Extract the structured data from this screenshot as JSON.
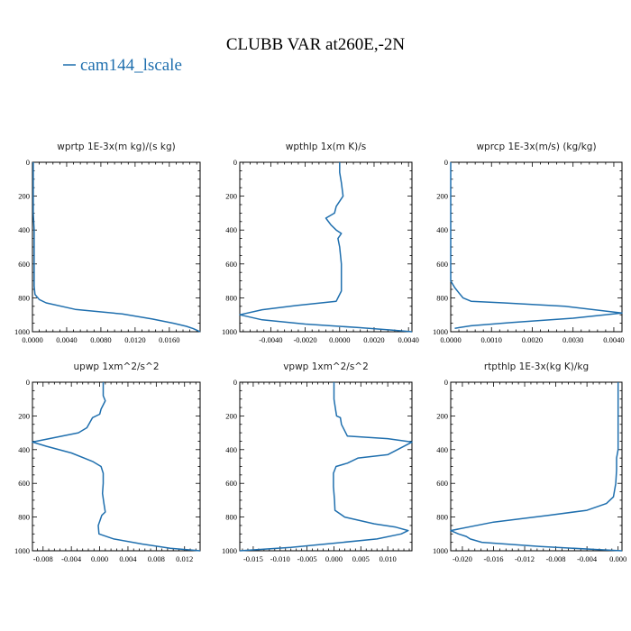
{
  "figure": {
    "title": "CLUBB VAR at260E,-2N",
    "legend": {
      "label": "cam144_lscale",
      "color": "#1f6fae"
    }
  },
  "chart_data": [
    {
      "type": "line",
      "title": "wprtp  1E-3x(m kg)/(s kg)",
      "xlim": [
        0,
        0.0196
      ],
      "xticks": [
        0,
        0.004,
        0.008,
        0.012,
        0.016
      ],
      "xtick_labels": [
        "0.0000",
        "0.0040",
        "0.0080",
        "0.0120",
        "0.0160"
      ],
      "ylim": [
        0,
        1000
      ],
      "yticks": [
        0,
        200,
        400,
        600,
        800,
        1000
      ],
      "ytick_labels": [
        "0",
        "200",
        "400",
        "600",
        "800",
        "1000"
      ],
      "ylabel_orientation": "inverted pressure axis",
      "series": [
        {
          "name": "cam144_lscale",
          "x": [
            0.0001,
            0.0001,
            0.0001,
            0.0001,
            0.0002,
            0.0002,
            0.0002,
            0.0002,
            0.0002,
            0.0003,
            0.0008,
            0.0016,
            0.005,
            0.0105,
            0.014,
            0.0165,
            0.018,
            0.0188,
            0.0196
          ],
          "y": [
            0,
            100,
            200,
            300,
            400,
            500,
            600,
            700,
            730,
            780,
            810,
            830,
            868,
            895,
            925,
            950,
            968,
            982,
            1000
          ]
        }
      ]
    },
    {
      "type": "line",
      "title": "wpthlp  1x(m K)/s",
      "xlim": [
        -0.0058,
        0.0042
      ],
      "xticks": [
        -0.004,
        -0.002,
        0,
        0.002,
        0.004
      ],
      "xtick_labels": [
        "-0.0040",
        "-0.0020",
        "0.0000",
        "0.0020",
        "0.0040"
      ],
      "ylim": [
        0,
        1000
      ],
      "yticks": [
        0,
        200,
        400,
        600,
        800,
        1000
      ],
      "ytick_labels": [
        "0",
        "200",
        "400",
        "600",
        "800",
        "1000"
      ],
      "series": [
        {
          "name": "cam144_lscale",
          "x": [
            0.0,
            0.0,
            0.0001,
            0.0002,
            -0.0002,
            -0.0003,
            -0.0008,
            -0.0005,
            -0.0002,
            0.0001,
            -0.0001,
            0.0,
            0.0001,
            0.0001,
            0.0001,
            -0.0002,
            -0.0025,
            -0.0045,
            -0.0058,
            -0.0045,
            -0.002,
            0.001,
            0.003,
            0.0042
          ],
          "y": [
            0,
            60,
            120,
            200,
            260,
            300,
            330,
            370,
            400,
            420,
            450,
            500,
            600,
            700,
            760,
            820,
            845,
            870,
            900,
            930,
            955,
            975,
            990,
            1000
          ]
        }
      ]
    },
    {
      "type": "line",
      "title": "wprcp  1E-3x(m/s) (kg/kg)",
      "xlim": [
        0,
        0.0042
      ],
      "xticks": [
        0,
        0.001,
        0.002,
        0.003,
        0.004
      ],
      "xtick_labels": [
        "0.0000",
        "0.0010",
        "0.0020",
        "0.0030",
        "0.0040"
      ],
      "ylim": [
        0,
        1000
      ],
      "yticks": [
        0,
        200,
        400,
        600,
        800,
        1000
      ],
      "ytick_labels": [
        "0",
        "200",
        "400",
        "600",
        "800",
        "1000"
      ],
      "series": [
        {
          "name": "cam144_lscale",
          "x": [
            0,
            0,
            0,
            0,
            0.0001,
            0.0002,
            0.0003,
            0.0005,
            0.0013,
            0.0028,
            0.0042,
            0.003,
            0.0015,
            0.0005,
            0.0001
          ],
          "y": [
            0,
            200,
            400,
            700,
            740,
            770,
            800,
            820,
            830,
            850,
            890,
            920,
            945,
            965,
            980
          ]
        }
      ]
    },
    {
      "type": "line",
      "title": "upwp  1xm^2/s^2",
      "xlim": [
        -0.0095,
        0.0142
      ],
      "xticks": [
        -0.008,
        -0.004,
        0,
        0.004,
        0.008,
        0.012
      ],
      "xtick_labels": [
        "-0.008",
        "-0.004",
        "0.000",
        "0.004",
        "0.008",
        "0.012"
      ],
      "ylim": [
        0,
        1000
      ],
      "yticks": [
        0,
        200,
        400,
        600,
        800,
        1000
      ],
      "ytick_labels": [
        "0",
        "200",
        "400",
        "600",
        "800",
        "1000"
      ],
      "series": [
        {
          "name": "cam144_lscale",
          "x": [
            0.0005,
            0.0005,
            0.0008,
            0.0002,
            0.0,
            -0.001,
            -0.0018,
            -0.003,
            -0.0095,
            -0.0075,
            -0.004,
            -0.001,
            0.0002,
            0.0005,
            0.0005,
            0.0004,
            0.0006,
            0.0008,
            0.0003,
            -0.0002,
            -0.0001,
            0.002,
            0.006,
            0.01,
            0.0142
          ],
          "y": [
            0,
            80,
            110,
            160,
            190,
            210,
            270,
            300,
            355,
            380,
            420,
            470,
            500,
            540,
            600,
            660,
            720,
            770,
            790,
            850,
            900,
            930,
            960,
            985,
            1000
          ]
        }
      ]
    },
    {
      "type": "line",
      "title": "vpwp  1xm^2/s^2",
      "xlim": [
        -0.0175,
        0.0145
      ],
      "xticks": [
        -0.015,
        -0.01,
        -0.005,
        0,
        0.005,
        0.01
      ],
      "xtick_labels": [
        "-0.015",
        "-0.010",
        "-0.005",
        "0.000",
        "0.005",
        "0.010"
      ],
      "ylim": [
        0,
        1000
      ],
      "yticks": [
        0,
        200,
        400,
        600,
        800,
        1000
      ],
      "ytick_labels": [
        "0",
        "200",
        "400",
        "600",
        "800",
        "1000"
      ],
      "series": [
        {
          "name": "cam144_lscale",
          "x": [
            0.0,
            0.0,
            0.0003,
            0.0005,
            0.0012,
            0.0014,
            0.0025,
            0.01,
            0.0145,
            0.01,
            0.0045,
            0.0025,
            0.0004,
            -0.0001,
            -0.0001,
            0.0001,
            0.0002,
            0.002,
            0.0075,
            0.0115,
            0.0138,
            0.0125,
            0.008,
            0.0,
            -0.008,
            -0.0175
          ],
          "y": [
            0,
            100,
            160,
            200,
            210,
            250,
            320,
            335,
            355,
            430,
            450,
            480,
            500,
            540,
            620,
            700,
            760,
            800,
            840,
            860,
            880,
            900,
            930,
            955,
            980,
            1000
          ]
        }
      ]
    },
    {
      "type": "line",
      "title": "rtpthlp  1E-3x(kg K)/kg",
      "xlim": [
        -0.0215,
        0.0005
      ],
      "xticks": [
        -0.02,
        -0.016,
        -0.012,
        -0.008,
        -0.004,
        0
      ],
      "xtick_labels": [
        "-0.020",
        "-0.016",
        "-0.012",
        "-0.008",
        "-0.004",
        "0.000"
      ],
      "ylim": [
        0,
        1000
      ],
      "yticks": [
        0,
        200,
        400,
        600,
        800,
        1000
      ],
      "ytick_labels": [
        "0",
        "200",
        "400",
        "600",
        "800",
        "1000"
      ],
      "series": [
        {
          "name": "cam144_lscale",
          "x": [
            0.0,
            0.0,
            0.0,
            -0.0002,
            -0.0002,
            -0.0003,
            -0.0006,
            -0.0015,
            -0.004,
            -0.009,
            -0.016,
            -0.0215,
            -0.0205,
            -0.0195,
            -0.019,
            -0.0175,
            -0.01,
            -0.003,
            0.0005
          ],
          "y": [
            0,
            200,
            400,
            450,
            520,
            600,
            680,
            720,
            760,
            790,
            830,
            880,
            900,
            915,
            930,
            950,
            975,
            992,
            1000
          ]
        }
      ]
    }
  ]
}
